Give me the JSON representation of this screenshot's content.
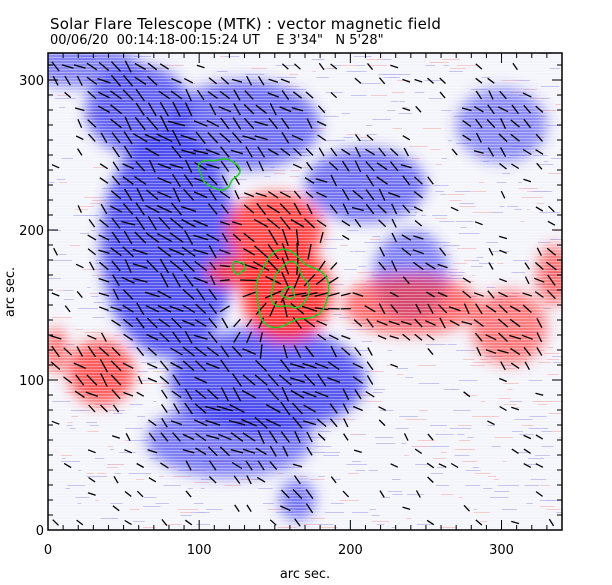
{
  "header": {
    "title": "Solar Flare Telescope (MTK) : vector magnetic field",
    "date": "00/06/20",
    "time_range": "00:14:18-00:15:24 UT",
    "position_e": "E 3'34\"",
    "position_n": "N 5'28\""
  },
  "colors": {
    "positive": "#ff3030",
    "negative": "#3a3aee",
    "contour": "#22cc22",
    "vector": "#000000",
    "background": "#ffffff"
  },
  "chart_data": {
    "type": "heatmap",
    "title": "Solar Flare Telescope (MTK) : vector magnetic field",
    "subtitle": "00/06/20  00:14:18-00:15:24 UT    E 3'34\"   N 5'28\"",
    "xlabel": "arc sec.",
    "ylabel": "arc sec.",
    "xlim": [
      0,
      340
    ],
    "ylim": [
      0,
      318
    ],
    "xticks": [
      0,
      100,
      200,
      300
    ],
    "yticks": [
      0,
      100,
      200,
      300
    ],
    "grid": false,
    "legend": "none",
    "description": "Longitudinal field map (red = positive polarity, blue = negative polarity) overlaid with black transverse-field vectors and green contours of strong positive field",
    "regions": [
      {
        "polarity": "negative",
        "label": "large negative region west",
        "center": [
          80,
          190
        ],
        "radius": [
          45,
          75
        ],
        "strength": 0.85
      },
      {
        "polarity": "negative",
        "label": "negative lobe upper",
        "center": [
          60,
          280
        ],
        "radius": [
          35,
          30
        ],
        "strength": 0.7
      },
      {
        "polarity": "negative",
        "label": "negative north",
        "center": [
          130,
          270
        ],
        "radius": [
          50,
          30
        ],
        "strength": 0.6
      },
      {
        "polarity": "negative",
        "label": "negative strand north-east",
        "center": [
          210,
          230
        ],
        "radius": [
          40,
          25
        ],
        "strength": 0.55
      },
      {
        "polarity": "negative",
        "label": "negative east",
        "center": [
          240,
          170
        ],
        "radius": [
          25,
          30
        ],
        "strength": 0.45
      },
      {
        "polarity": "negative",
        "label": "negative south",
        "center": [
          145,
          100
        ],
        "radius": [
          65,
          35
        ],
        "strength": 0.8
      },
      {
        "polarity": "negative",
        "label": "negative south tail",
        "center": [
          120,
          60
        ],
        "radius": [
          55,
          25
        ],
        "strength": 0.5
      },
      {
        "polarity": "negative",
        "label": "negative small south",
        "center": [
          165,
          20
        ],
        "radius": [
          12,
          14
        ],
        "strength": 0.5
      },
      {
        "polarity": "negative",
        "label": "negative east faint",
        "center": [
          300,
          270
        ],
        "radius": [
          30,
          25
        ],
        "strength": 0.35
      },
      {
        "polarity": "negative",
        "label": "negative north-west",
        "center": [
          20,
          310
        ],
        "radius": [
          40,
          15
        ],
        "strength": 0.4
      },
      {
        "polarity": "positive",
        "label": "main positive spot",
        "center": [
          158,
          158
        ],
        "radius": [
          30,
          32
        ],
        "strength": 1.0
      },
      {
        "polarity": "positive",
        "label": "positive bridge",
        "center": [
          150,
          200
        ],
        "radius": [
          32,
          25
        ],
        "strength": 0.85
      },
      {
        "polarity": "positive",
        "label": "positive tongue west",
        "center": [
          125,
          172
        ],
        "radius": [
          20,
          10
        ],
        "strength": 0.85
      },
      {
        "polarity": "positive",
        "label": "positive plage east",
        "center": [
          240,
          150
        ],
        "radius": [
          45,
          20
        ],
        "strength": 0.55
      },
      {
        "polarity": "positive",
        "label": "positive plage far east",
        "center": [
          305,
          135
        ],
        "radius": [
          25,
          25
        ],
        "strength": 0.45
      },
      {
        "polarity": "positive",
        "label": "positive west",
        "center": [
          35,
          105
        ],
        "radius": [
          22,
          22
        ],
        "strength": 0.7
      },
      {
        "polarity": "positive",
        "label": "positive edge east",
        "center": [
          335,
          170
        ],
        "radius": [
          12,
          20
        ],
        "strength": 0.5
      },
      {
        "polarity": "positive",
        "label": "positive edge west",
        "center": [
          5,
          120
        ],
        "radius": [
          8,
          15
        ],
        "strength": 0.5
      }
    ],
    "contours": [
      {
        "label": "negative peak contour",
        "center": [
          113,
          238
        ],
        "radius": [
          13,
          10
        ]
      },
      {
        "label": "positive small contour",
        "center": [
          126,
          175
        ],
        "radius": [
          4,
          4
        ]
      },
      {
        "label": "positive outer contour",
        "center": [
          160,
          160
        ],
        "radius": [
          24,
          24
        ]
      },
      {
        "label": "positive middle contour",
        "center": [
          160,
          162
        ],
        "radius": [
          12,
          15
        ]
      },
      {
        "label": "positive core contour",
        "center": [
          159,
          158
        ],
        "radius": [
          4,
          4
        ]
      }
    ]
  }
}
